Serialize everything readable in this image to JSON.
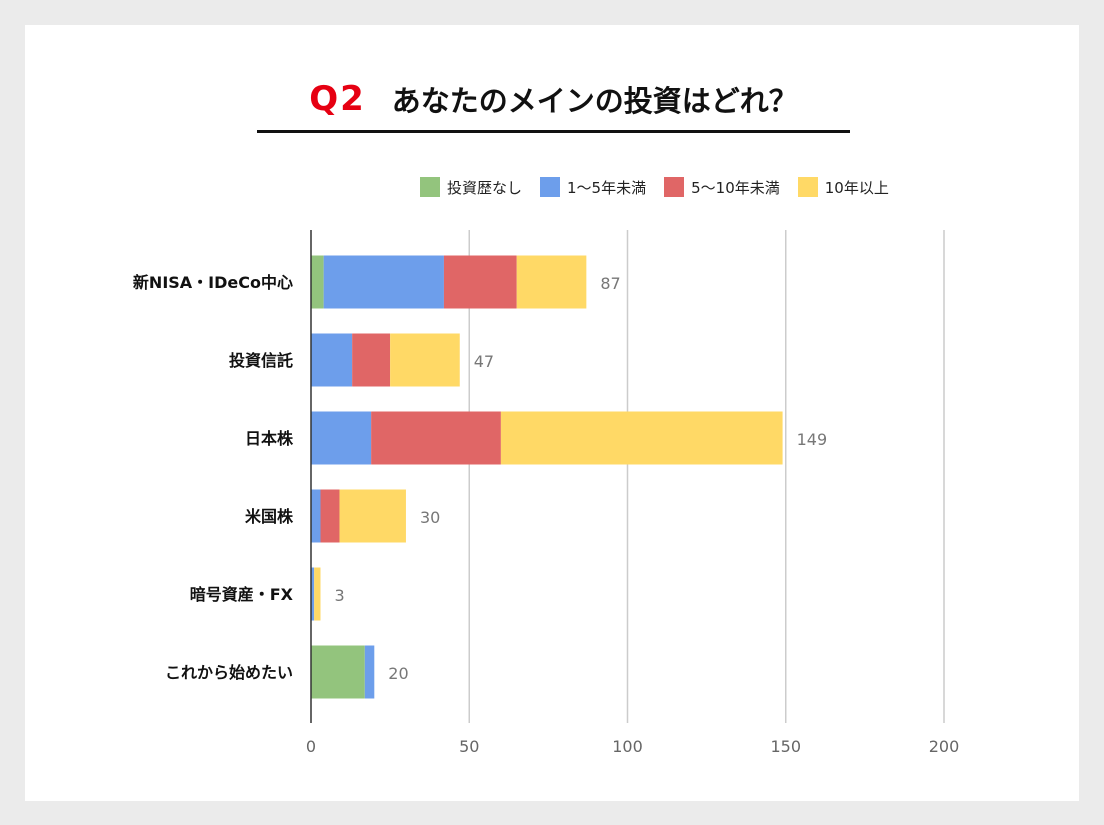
{
  "title": {
    "q": "Q2",
    "text": "あなたのメインの投資はどれ？"
  },
  "colors": {
    "series": [
      "#93c47d",
      "#6d9eeb",
      "#e06666",
      "#ffd966"
    ],
    "grid": "#cccccc",
    "axis": "#333333"
  },
  "chart_data": {
    "type": "bar",
    "orientation": "horizontal",
    "stacked": true,
    "title": "Q2 あなたのメインの投資はどれ？",
    "legend_position": "top-right",
    "categories": [
      "新NISA・IDeCo中心",
      "投資信託",
      "日本株",
      "米国株",
      "暗号資産・FX",
      "これから始めたい"
    ],
    "series": [
      {
        "name": "投資歴なし",
        "values": [
          4,
          0,
          0,
          0,
          0,
          17
        ]
      },
      {
        "name": "1〜5年未満",
        "values": [
          38,
          13,
          19,
          3,
          1,
          3
        ]
      },
      {
        "name": "5〜10年未満",
        "values": [
          23,
          12,
          41,
          6,
          0,
          0
        ]
      },
      {
        "name": "10年以上",
        "values": [
          22,
          22,
          89,
          21,
          2,
          0
        ]
      }
    ],
    "totals": [
      87,
      47,
      149,
      30,
      3,
      20
    ],
    "x_ticks": [
      0,
      50,
      100,
      150,
      200
    ],
    "xlim": [
      0,
      200
    ],
    "grid": true
  }
}
